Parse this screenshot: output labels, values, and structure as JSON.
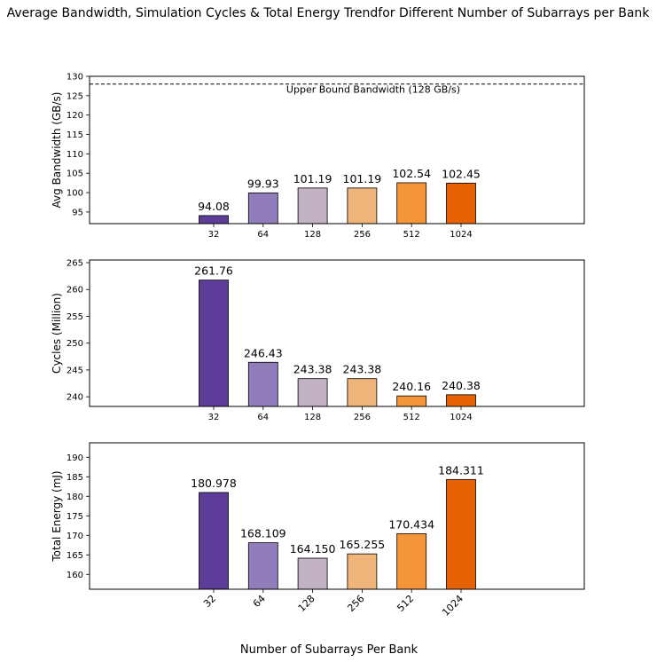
{
  "title": "Average Bandwidth, Simulation Cycles & Total Energy Trendfor Different Number of Subarrays per Bank",
  "xlabel": "Number of Subarrays Per Bank",
  "colors": {
    "bars": [
      "#5e3c99",
      "#917dba",
      "#c2b2c4",
      "#eeb479",
      "#f59539",
      "#e56305"
    ],
    "edge": "#000000",
    "frame": "#000000"
  },
  "chart_data": [
    {
      "type": "bar",
      "categories": [
        "32",
        "64",
        "128",
        "256",
        "512",
        "1024"
      ],
      "values": [
        94.08,
        99.93,
        101.19,
        101.19,
        102.54,
        102.45
      ],
      "value_labels": [
        "94.08",
        "99.93",
        "101.19",
        "101.19",
        "102.54",
        "102.45"
      ],
      "ylabel": "Avg Bandwidth (GB/s)",
      "ylim": [
        92,
        130
      ],
      "yticks": [
        95,
        100,
        105,
        110,
        115,
        120,
        125,
        130
      ],
      "reference_line": {
        "value": 128,
        "style": "dashed",
        "label": "Upper Bound Bandwidth (128 GB/s)"
      },
      "grid": false
    },
    {
      "type": "bar",
      "categories": [
        "32",
        "64",
        "128",
        "256",
        "512",
        "1024"
      ],
      "values": [
        261.76,
        246.43,
        243.38,
        243.38,
        240.16,
        240.38
      ],
      "value_labels": [
        "261.76",
        "246.43",
        "243.38",
        "243.38",
        "240.16",
        "240.38"
      ],
      "ylabel": "Cycles (Million)",
      "ylim": [
        238.2,
        265.5
      ],
      "yticks": [
        240,
        245,
        250,
        255,
        260,
        265
      ],
      "grid": false
    },
    {
      "type": "bar",
      "categories": [
        "32",
        "64",
        "128",
        "256",
        "512",
        "1024"
      ],
      "values": [
        180.978,
        168.109,
        164.15,
        165.255,
        170.434,
        184.311
      ],
      "value_labels": [
        "180.978",
        "168.109",
        "164.150",
        "165.255",
        "170.434",
        "184.311"
      ],
      "ylabel": "Total Energy (mJ)",
      "ylim": [
        156.2,
        193.7
      ],
      "yticks": [
        160,
        165,
        170,
        175,
        180,
        185,
        190
      ],
      "tick_rotation": 45,
      "grid": false
    }
  ]
}
